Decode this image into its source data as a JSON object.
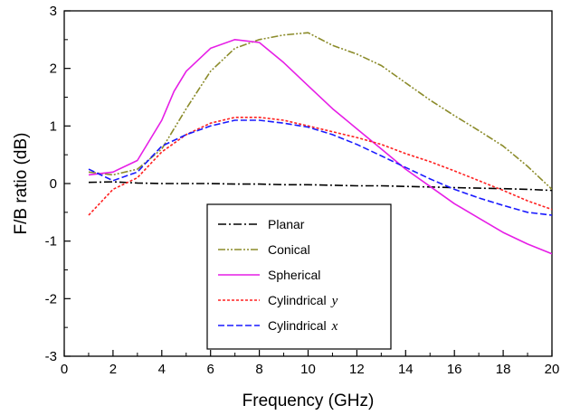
{
  "chart_data": {
    "type": "line",
    "title": "",
    "xlabel": "Frequency (GHz)",
    "ylabel": "F/B ratio (dB)",
    "xlim": [
      0,
      20
    ],
    "ylim": [
      -3,
      3
    ],
    "xticks": [
      "0",
      "2",
      "4",
      "6",
      "8",
      "10",
      "12",
      "14",
      "16",
      "18",
      "20"
    ],
    "yticks": [
      "-3",
      "-2",
      "-1",
      "0",
      "1",
      "2",
      "3"
    ],
    "grid": false,
    "legend_position": "lower-center",
    "series": [
      {
        "name": "Planar",
        "legend_suffix": "",
        "color": "#000000",
        "dash": "dash-dot",
        "x": [
          1,
          2,
          3,
          4,
          5,
          6,
          7,
          8,
          9,
          10,
          11,
          12,
          13,
          14,
          15,
          16,
          17,
          18,
          19,
          20
        ],
        "y": [
          0.02,
          0.03,
          0.01,
          0.0,
          0.0,
          0.0,
          -0.01,
          -0.01,
          -0.02,
          -0.02,
          -0.03,
          -0.04,
          -0.04,
          -0.05,
          -0.06,
          -0.07,
          -0.08,
          -0.09,
          -0.1,
          -0.12
        ]
      },
      {
        "name": "Conical",
        "legend_suffix": "",
        "color": "#8b8b2a",
        "dash": "dash-dot-dot",
        "x": [
          1,
          2,
          3,
          4,
          5,
          6,
          7,
          8,
          9,
          10,
          11,
          12,
          13,
          14,
          15,
          16,
          17,
          18,
          19,
          20
        ],
        "y": [
          0.2,
          0.15,
          0.25,
          0.6,
          1.3,
          1.95,
          2.35,
          2.5,
          2.58,
          2.62,
          2.4,
          2.25,
          2.05,
          1.75,
          1.45,
          1.18,
          0.92,
          0.65,
          0.3,
          -0.1
        ]
      },
      {
        "name": "Spherical",
        "legend_suffix": "",
        "color": "#e61ee6",
        "dash": "solid",
        "x": [
          1,
          2,
          3,
          4,
          4.5,
          5,
          6,
          7,
          8,
          9,
          10,
          11,
          12,
          13,
          14,
          15,
          16,
          17,
          18,
          19,
          20
        ],
        "y": [
          0.15,
          0.2,
          0.4,
          1.1,
          1.6,
          1.95,
          2.35,
          2.5,
          2.45,
          2.1,
          1.7,
          1.3,
          0.95,
          0.6,
          0.25,
          -0.05,
          -0.35,
          -0.6,
          -0.85,
          -1.05,
          -1.22
        ]
      },
      {
        "name": "Cylindrical",
        "legend_suffix": "y",
        "color": "#ff2020",
        "dash": "dotted",
        "x": [
          1,
          2,
          3,
          4,
          5,
          6,
          7,
          8,
          9,
          10,
          11,
          12,
          13,
          14,
          15,
          16,
          17,
          18,
          19,
          20
        ],
        "y": [
          -0.55,
          -0.1,
          0.1,
          0.55,
          0.85,
          1.05,
          1.15,
          1.15,
          1.1,
          1.0,
          0.9,
          0.8,
          0.68,
          0.52,
          0.38,
          0.22,
          0.05,
          -0.12,
          -0.3,
          -0.45
        ]
      },
      {
        "name": "Cylindrical",
        "legend_suffix": "x",
        "color": "#1a1aff",
        "dash": "dashed",
        "x": [
          1,
          2,
          3,
          4,
          5,
          6,
          7,
          8,
          9,
          10,
          11,
          12,
          13,
          14,
          15,
          16,
          17,
          18,
          19,
          20
        ],
        "y": [
          0.25,
          0.05,
          0.2,
          0.65,
          0.85,
          1.0,
          1.1,
          1.1,
          1.05,
          0.98,
          0.85,
          0.68,
          0.48,
          0.28,
          0.08,
          -0.1,
          -0.25,
          -0.38,
          -0.5,
          -0.55
        ]
      }
    ]
  }
}
